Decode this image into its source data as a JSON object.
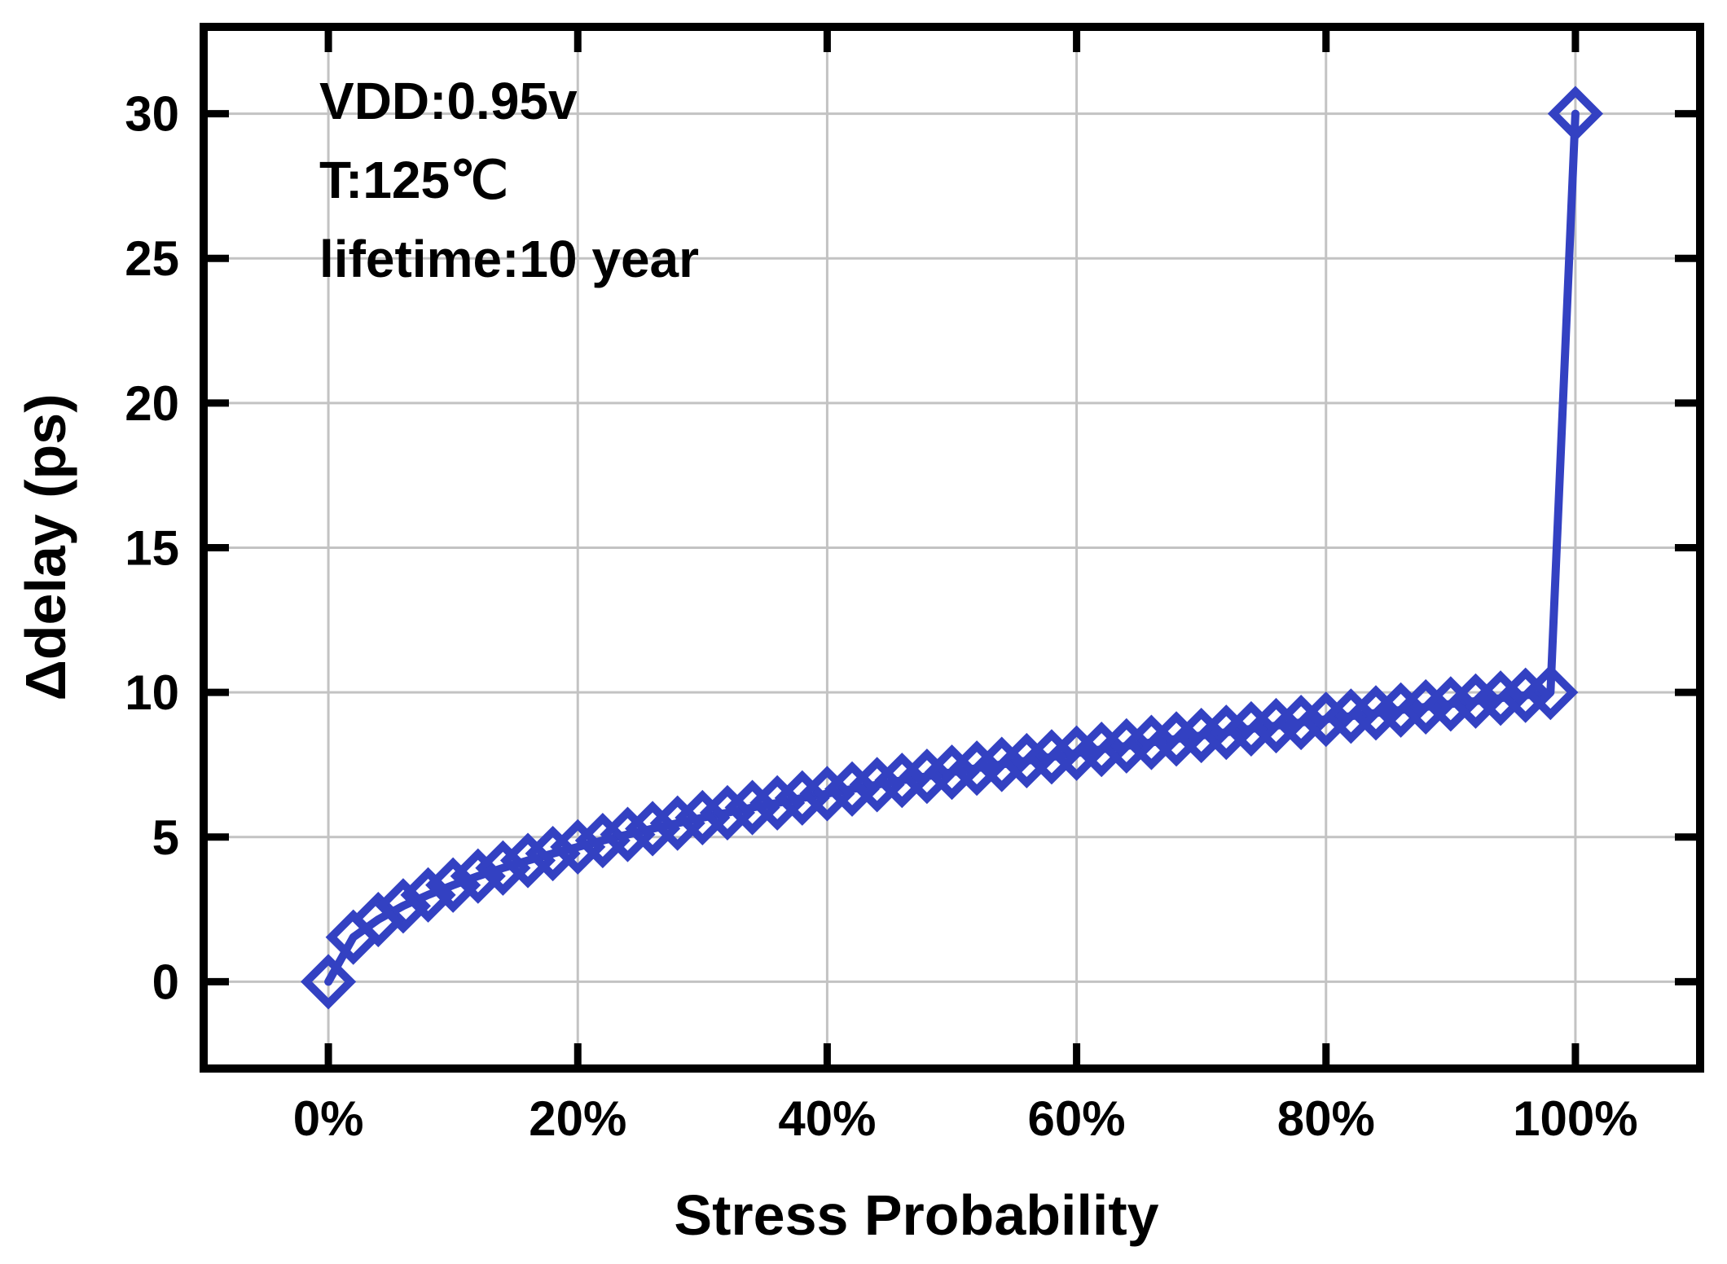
{
  "figure": {
    "background": "#ffffff",
    "accent_blue": "#3341c2",
    "grid_color": "#c3c3c3",
    "frame_color": "#000000"
  },
  "chart_data": {
    "type": "line",
    "title": "",
    "xlabel": "Stress Probability",
    "ylabel": "Δdelay (ps)",
    "xlim": [
      -10,
      110
    ],
    "ylim": [
      -3,
      33
    ],
    "grid": true,
    "legend_position": "none",
    "x_tick_values": [
      0,
      20,
      40,
      60,
      80,
      100
    ],
    "x_tick_labels": [
      "0%",
      "20%",
      "40%",
      "60%",
      "80%",
      "100%"
    ],
    "y_tick_values": [
      0,
      5,
      10,
      15,
      20,
      25,
      30
    ],
    "y_tick_labels": [
      "0",
      "5",
      "10",
      "15",
      "20",
      "25",
      "30"
    ],
    "annotations": [
      {
        "text": "VDD:0.95v"
      },
      {
        "text": "T:125℃"
      },
      {
        "text": "lifetime:10 year"
      }
    ],
    "series": [
      {
        "name": "delay-vs-stress-probability",
        "color": "#3341c2",
        "marker": "open-diamond",
        "x": [
          0,
          2,
          4,
          6,
          8,
          10,
          12,
          14,
          16,
          18,
          20,
          22,
          24,
          26,
          28,
          30,
          32,
          34,
          36,
          38,
          40,
          42,
          44,
          46,
          48,
          50,
          52,
          54,
          56,
          58,
          60,
          62,
          64,
          66,
          68,
          70,
          72,
          74,
          76,
          78,
          80,
          82,
          84,
          86,
          88,
          90,
          92,
          94,
          96,
          98,
          100
        ],
        "y": [
          0,
          1.54,
          2.15,
          2.62,
          3.0,
          3.34,
          3.65,
          3.93,
          4.19,
          4.43,
          4.66,
          4.88,
          5.09,
          5.29,
          5.48,
          5.67,
          5.84,
          6.02,
          6.18,
          6.35,
          6.5,
          6.66,
          6.81,
          6.96,
          7.1,
          7.24,
          7.38,
          7.51,
          7.64,
          7.77,
          7.9,
          8.03,
          8.15,
          8.27,
          8.39,
          8.51,
          8.62,
          8.74,
          8.85,
          8.96,
          9.07,
          9.18,
          9.29,
          9.39,
          9.5,
          9.6,
          9.7,
          9.8,
          9.9,
          10.0,
          30
        ]
      }
    ]
  }
}
